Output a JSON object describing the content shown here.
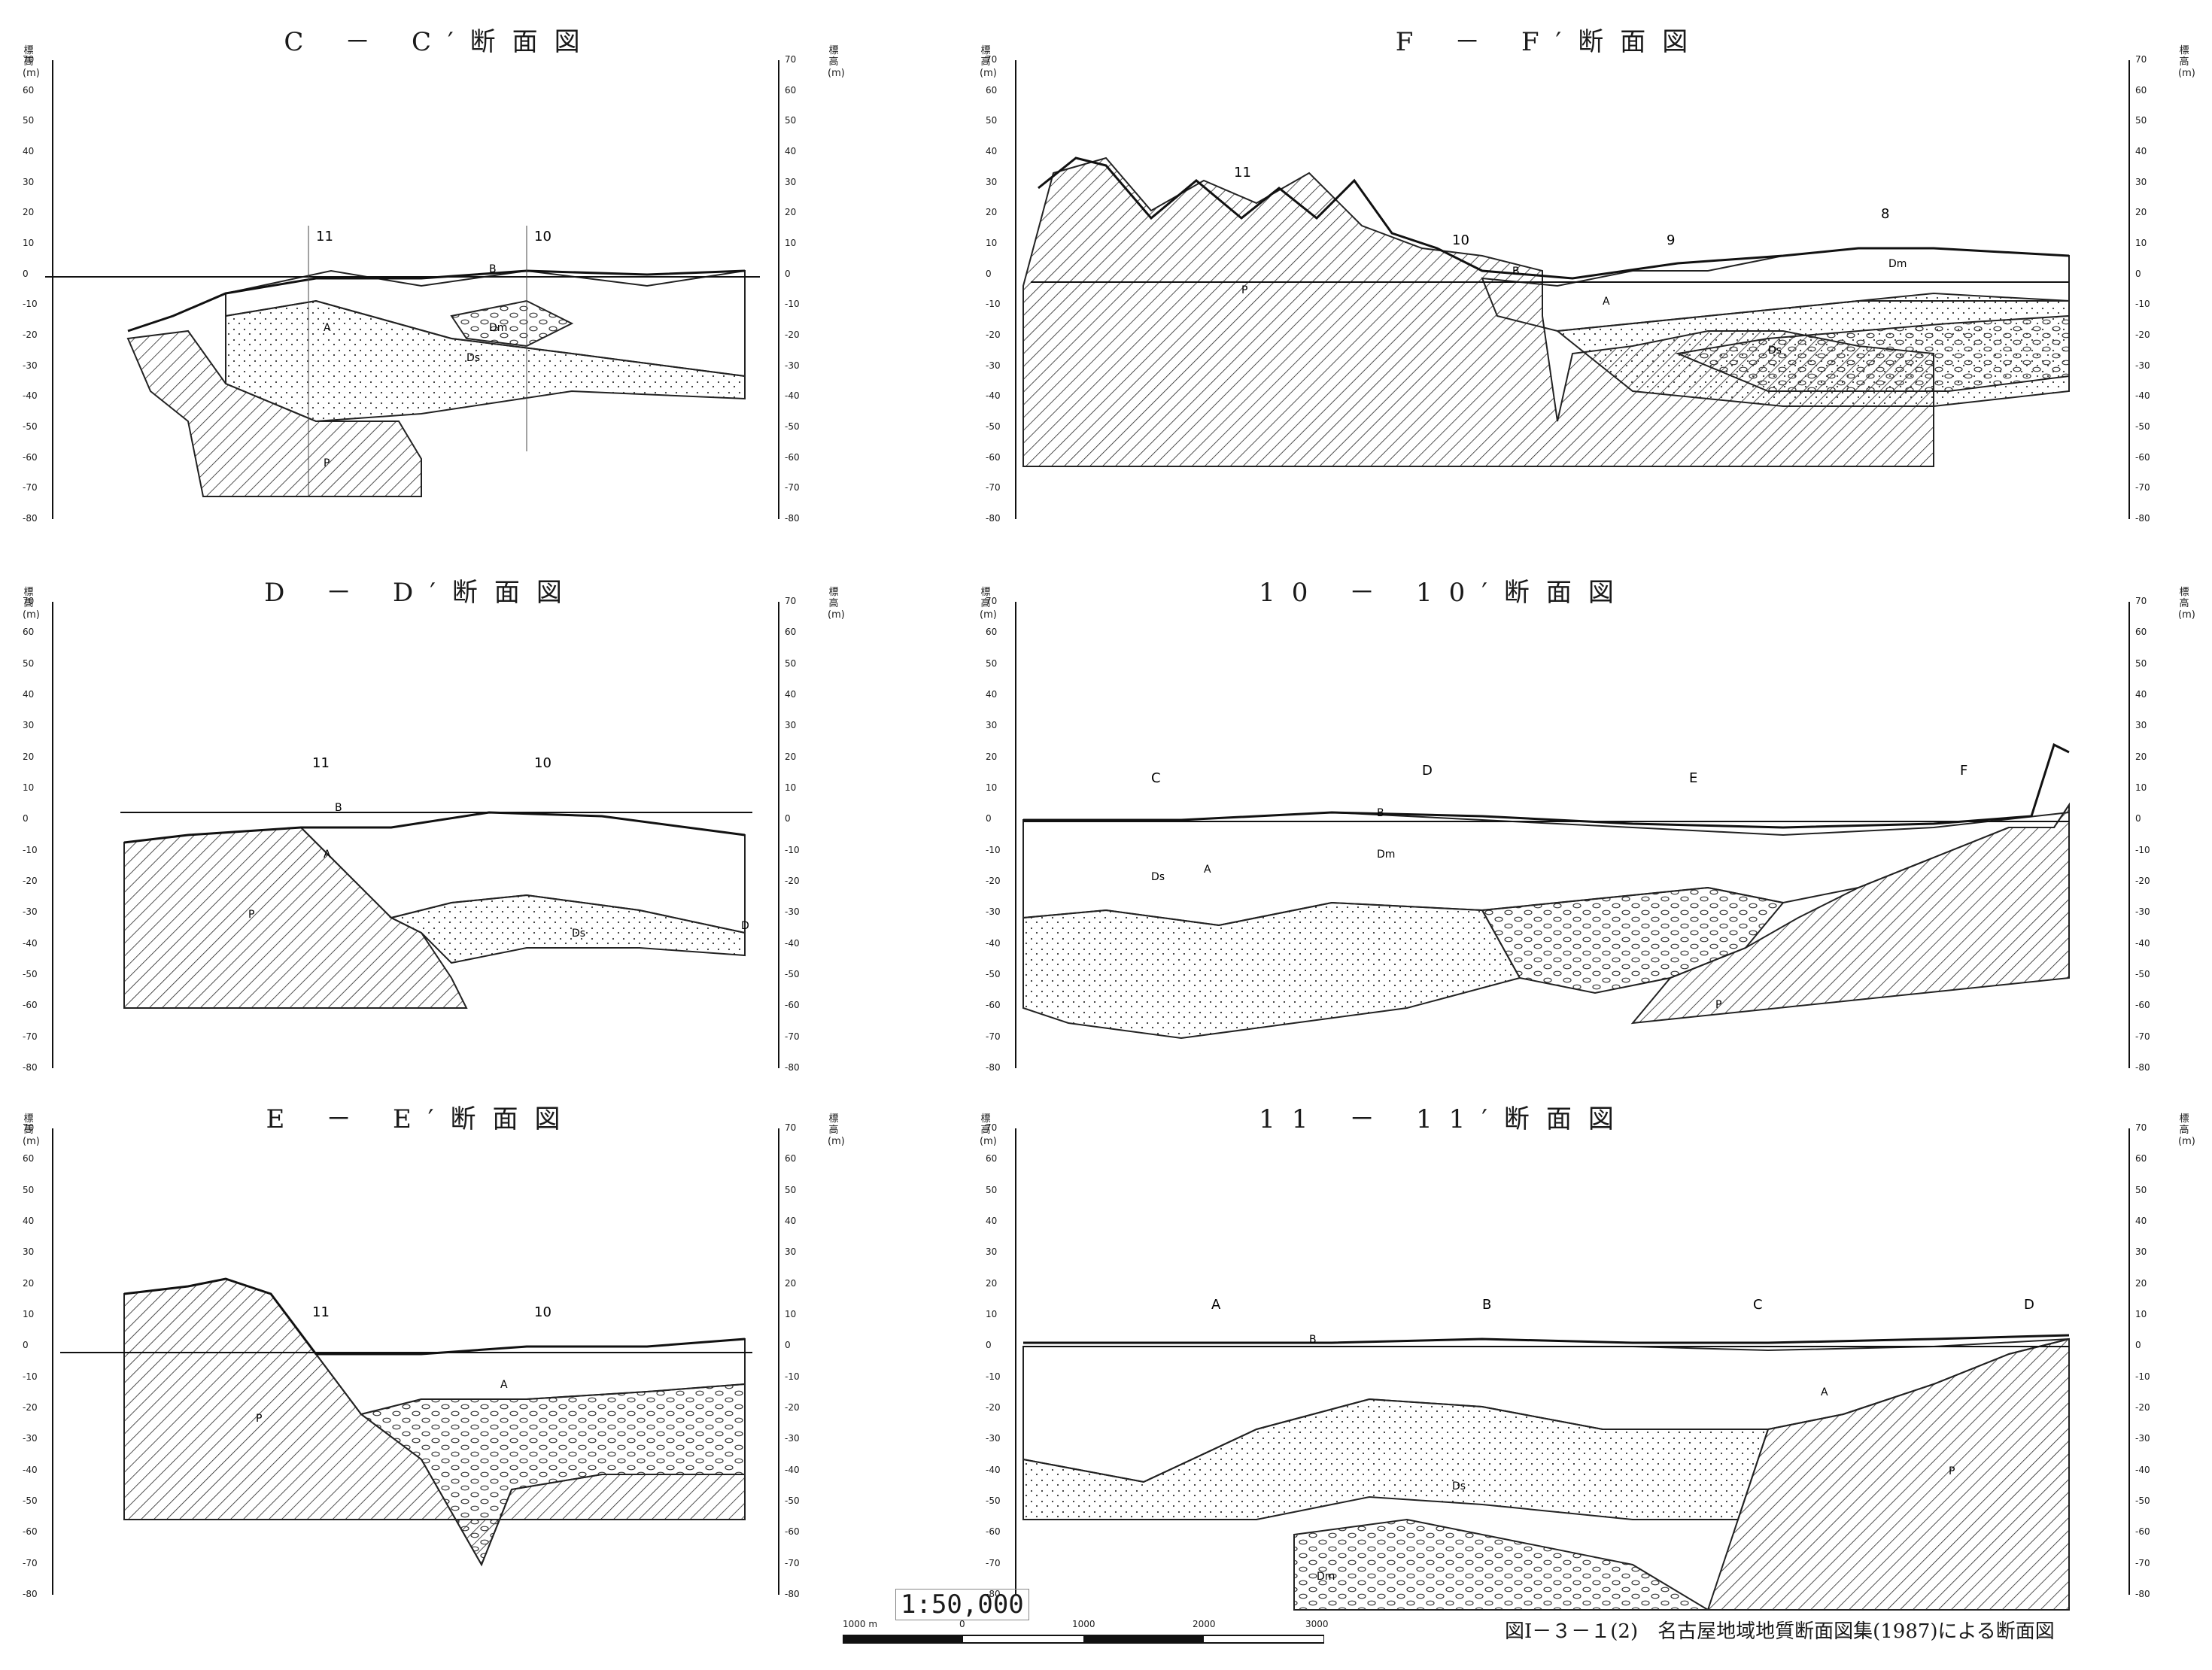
{
  "figure": {
    "caption": "図Ⅰ－３－１(2)　名古屋地域地質断面図集(1987)による断面図",
    "scale_text": "1:50,000",
    "scale_ticks": [
      "1000 m",
      "0",
      "1000",
      "2000",
      "3000"
    ]
  },
  "axis": {
    "label": "標高(m)",
    "ticks": [
      "70",
      "60",
      "50",
      "40",
      "30",
      "20",
      "10",
      "0",
      "-10",
      "-20",
      "-30",
      "-40",
      "-50",
      "-60",
      "-70",
      "-80"
    ]
  },
  "panels": [
    {
      "id": "cc",
      "title": "C － C′断面図",
      "markers": [
        "11",
        "10"
      ],
      "units": [
        "B",
        "A",
        "Dm",
        "Ds",
        "P"
      ]
    },
    {
      "id": "ff",
      "title": "F － F′断面図",
      "markers": [
        "11",
        "10",
        "9",
        "8"
      ],
      "units": [
        "B",
        "A",
        "Dm",
        "Ds",
        "P"
      ]
    },
    {
      "id": "dd",
      "title": "D － D′断面図",
      "markers": [
        "11",
        "10"
      ],
      "units": [
        "B",
        "A",
        "Ds",
        "P",
        "D"
      ]
    },
    {
      "id": "t10",
      "title": "10 － 10′断面図",
      "markers": [
        "C",
        "D",
        "E",
        "F"
      ],
      "units": [
        "B",
        "A",
        "Dm",
        "Ds",
        "P"
      ]
    },
    {
      "id": "ee",
      "title": "E － E′断面図",
      "markers": [
        "11",
        "10"
      ],
      "units": [
        "A",
        "P"
      ]
    },
    {
      "id": "t11",
      "title": "11 － 11′断面図",
      "markers": [
        "A",
        "B",
        "C",
        "D"
      ],
      "units": [
        "B",
        "A",
        "Dm",
        "Ds",
        "P"
      ]
    }
  ],
  "colors": {
    "ink": "#1a1a1a",
    "paper": "#ffffff"
  }
}
